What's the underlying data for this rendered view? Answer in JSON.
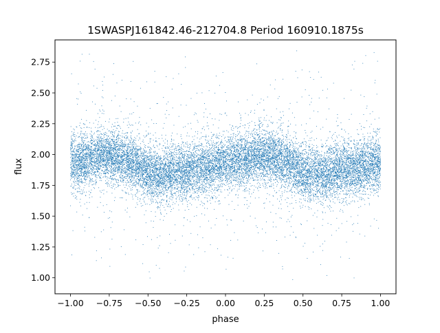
{
  "chart_data": {
    "type": "scatter",
    "title": "1SWASPJ161842.46-212704.8 Period 160910.1875s",
    "xlabel": "phase",
    "ylabel": "flux",
    "xlim": [
      -1.1,
      1.1
    ],
    "ylim": [
      0.87,
      2.93
    ],
    "x_ticks": [
      -1.0,
      -0.75,
      -0.5,
      -0.25,
      0.0,
      0.25,
      0.5,
      0.75,
      1.0
    ],
    "x_tick_labels": [
      "−1.00",
      "−0.75",
      "−0.50",
      "−0.25",
      "0.00",
      "0.25",
      "0.50",
      "0.75",
      "1.00"
    ],
    "y_ticks": [
      1.0,
      1.25,
      1.5,
      1.75,
      2.0,
      2.25,
      2.5,
      2.75
    ],
    "y_tick_labels": [
      "1.00",
      "1.25",
      "1.50",
      "1.75",
      "2.00",
      "2.25",
      "2.50",
      "2.75"
    ],
    "grid": false,
    "legend": "none",
    "marker_color": "#1f77b4",
    "series": [
      {
        "x_range": [
          -1.0,
          1.0
        ],
        "trend_phase": [
          -1.0,
          -0.9,
          -0.8,
          -0.7,
          -0.6,
          -0.5,
          -0.4,
          -0.3,
          -0.2,
          -0.1,
          0.0,
          0.1,
          0.2,
          0.3,
          0.4,
          0.5,
          0.6,
          0.7,
          0.8,
          0.9,
          1.0
        ],
        "trend_flux": [
          1.93,
          1.96,
          1.99,
          1.98,
          1.94,
          1.85,
          1.83,
          1.87,
          1.88,
          1.9,
          1.93,
          1.96,
          1.99,
          1.98,
          1.94,
          1.85,
          1.83,
          1.87,
          1.88,
          1.9,
          1.93
        ],
        "core_scatter_sd": 0.11,
        "point_count": 16000
      }
    ]
  }
}
